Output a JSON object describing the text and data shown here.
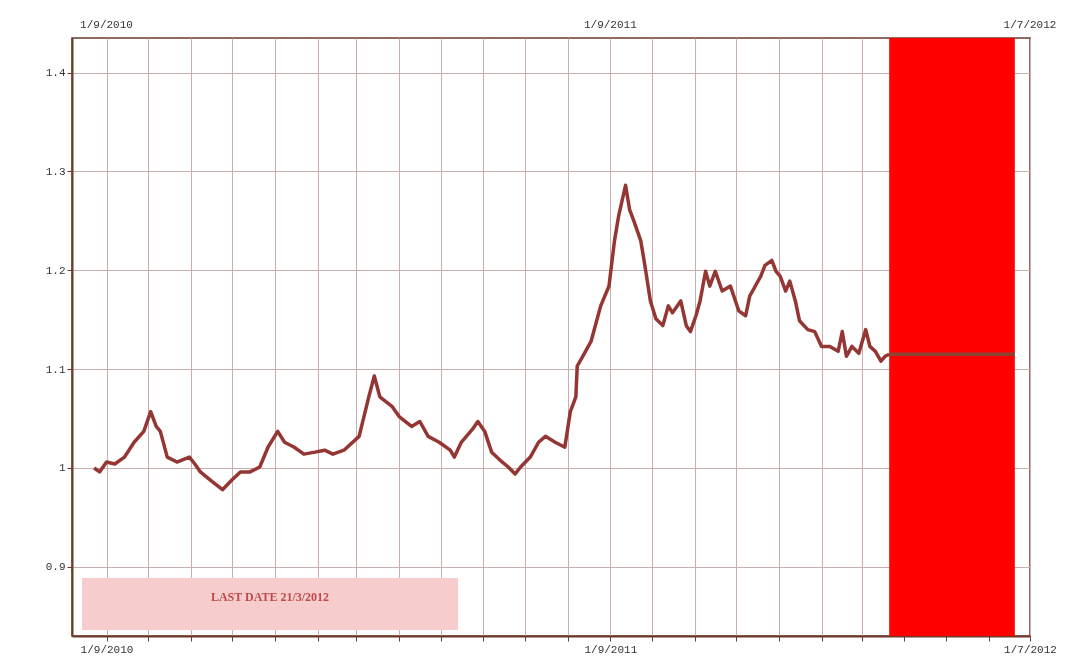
{
  "chart_data": {
    "type": "line",
    "x": [
      "2010-08-23",
      "2010-08-27",
      "2010-09-01",
      "2010-09-07",
      "2010-09-14",
      "2010-09-21",
      "2010-09-28",
      "2010-10-03",
      "2010-10-07",
      "2010-10-10",
      "2010-10-15",
      "2010-10-22",
      "2010-10-31",
      "2010-11-04",
      "2010-11-08",
      "2010-11-15",
      "2010-11-24",
      "2010-12-01",
      "2010-12-07",
      "2010-12-14",
      "2010-12-21",
      "2010-12-27",
      "2011-01-03",
      "2011-01-08",
      "2011-01-15",
      "2011-01-22",
      "2011-01-30",
      "2011-02-06",
      "2011-02-12",
      "2011-02-20",
      "2011-03-03",
      "2011-03-10",
      "2011-03-14",
      "2011-03-18",
      "2011-03-27",
      "2011-04-01",
      "2011-04-10",
      "2011-04-16",
      "2011-04-22",
      "2011-04-30",
      "2011-05-08",
      "2011-05-11",
      "2011-05-16",
      "2011-05-24",
      "2011-05-28",
      "2011-06-02",
      "2011-06-07",
      "2011-06-13",
      "2011-06-19",
      "2011-06-24",
      "2011-06-28",
      "2011-07-05",
      "2011-07-11",
      "2011-07-16",
      "2011-07-23",
      "2011-07-30",
      "2011-08-03",
      "2011-08-07",
      "2011-08-08",
      "2011-08-12",
      "2011-08-18",
      "2011-08-25",
      "2011-08-31",
      "2011-09-04",
      "2011-09-07",
      "2011-09-12",
      "2011-09-15",
      "2011-09-18",
      "2011-09-23",
      "2011-09-26",
      "2011-09-30",
      "2011-10-04",
      "2011-10-09",
      "2011-10-13",
      "2011-10-16",
      "2011-10-22",
      "2011-10-26",
      "2011-10-29",
      "2011-11-02",
      "2011-11-05",
      "2011-11-09",
      "2011-11-12",
      "2011-11-16",
      "2011-11-21",
      "2011-11-27",
      "2011-12-03",
      "2011-12-08",
      "2011-12-11",
      "2011-12-19",
      "2011-12-22",
      "2011-12-27",
      "2011-12-30",
      "2012-01-02",
      "2012-01-06",
      "2012-01-09",
      "2012-01-13",
      "2012-01-16",
      "2012-01-22",
      "2012-01-27",
      "2012-02-01",
      "2012-02-07",
      "2012-02-13",
      "2012-02-16",
      "2012-02-19",
      "2012-02-23",
      "2012-02-28",
      "2012-03-04",
      "2012-03-07",
      "2012-03-11",
      "2012-03-15",
      "2012-03-18",
      "2012-03-21"
    ],
    "series": [
      {
        "color": "#943634",
        "values": [
          1.0,
          0.996,
          1.006,
          1.004,
          1.011,
          1.026,
          1.037,
          1.057,
          1.042,
          1.037,
          1.011,
          1.006,
          1.011,
          1.004,
          0.996,
          0.988,
          0.978,
          0.988,
          0.996,
          0.996,
          1.001,
          1.021,
          1.037,
          1.026,
          1.021,
          1.014,
          1.016,
          1.018,
          1.014,
          1.018,
          1.032,
          1.072,
          1.093,
          1.072,
          1.062,
          1.052,
          1.042,
          1.047,
          1.032,
          1.026,
          1.018,
          1.011,
          1.026,
          1.039,
          1.047,
          1.037,
          1.016,
          1.008,
          1.001,
          0.994,
          1.001,
          1.011,
          1.026,
          1.032,
          1.026,
          1.021,
          1.057,
          1.072,
          1.103,
          1.113,
          1.128,
          1.164,
          1.184,
          1.23,
          1.255,
          1.286,
          1.261,
          1.25,
          1.23,
          1.205,
          1.169,
          1.151,
          1.144,
          1.164,
          1.157,
          1.169,
          1.144,
          1.138,
          1.154,
          1.169,
          1.199,
          1.184,
          1.199,
          1.179,
          1.184,
          1.159,
          1.154,
          1.174,
          1.194,
          1.205,
          1.21,
          1.199,
          1.194,
          1.179,
          1.189,
          1.169,
          1.149,
          1.14,
          1.138,
          1.123,
          1.123,
          1.118,
          1.138,
          1.113,
          1.123,
          1.116,
          1.14,
          1.123,
          1.118,
          1.108,
          1.113,
          1.115
        ]
      },
      {
        "type": "line",
        "color": "#8b4433",
        "x": [
          "2012-03-21",
          "2012-06-20"
        ],
        "values": [
          1.115,
          1.115
        ]
      }
    ],
    "bands": [
      {
        "axis": "x",
        "from": "2012-03-21",
        "to": "2012-06-20",
        "color": "#ff0000"
      }
    ],
    "xlim": [
      "2010-08-07",
      "2012-07-01"
    ],
    "xticks": [
      {
        "value": "2010-09-01",
        "label": "1/9/2010"
      },
      {
        "value": "2010-10-01",
        "label": null
      },
      {
        "value": "2010-11-01",
        "label": null
      },
      {
        "value": "2010-12-01",
        "label": null
      },
      {
        "value": "2011-01-01",
        "label": null
      },
      {
        "value": "2011-02-01",
        "label": null
      },
      {
        "value": "2011-03-01",
        "label": null
      },
      {
        "value": "2011-04-01",
        "label": null
      },
      {
        "value": "2011-05-01",
        "label": null
      },
      {
        "value": "2011-06-01",
        "label": null
      },
      {
        "value": "2011-07-01",
        "label": null
      },
      {
        "value": "2011-08-01",
        "label": null
      },
      {
        "value": "2011-09-01",
        "label": "1/9/2011"
      },
      {
        "value": "2011-10-01",
        "label": null
      },
      {
        "value": "2011-11-01",
        "label": null
      },
      {
        "value": "2011-12-01",
        "label": null
      },
      {
        "value": "2012-01-01",
        "label": null
      },
      {
        "value": "2012-02-01",
        "label": null
      },
      {
        "value": "2012-03-01",
        "label": null
      },
      {
        "value": "2012-04-01",
        "label": null
      },
      {
        "value": "2012-05-01",
        "label": null
      },
      {
        "value": "2012-06-01",
        "label": null
      },
      {
        "value": "2012-07-01",
        "label": "1/7/2012"
      }
    ],
    "x2lim": [
      "2010-08-07",
      "2012-07-01"
    ],
    "x2ticks": [
      {
        "value": "2010-09-01",
        "label": "1/9/2010"
      },
      {
        "value": "2011-09-01",
        "label": "1/9/2011"
      },
      {
        "value": "2012-07-01",
        "label": "1/7/2012"
      }
    ],
    "ylim": [
      0.83,
      1.435
    ],
    "yticks": [
      0.9,
      1,
      1.1,
      1.2,
      1.3,
      1.4
    ],
    "grid": true,
    "annotations": [
      "LAST DATE  21/3/2012"
    ]
  }
}
